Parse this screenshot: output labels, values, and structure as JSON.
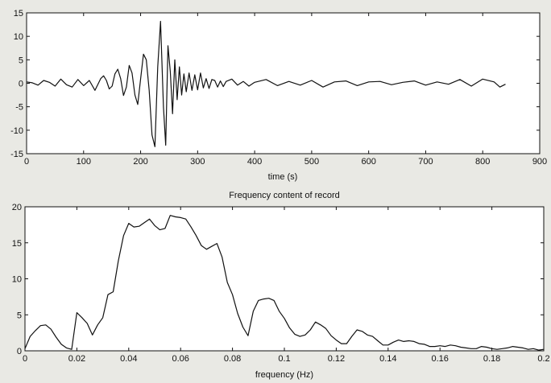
{
  "chart_data": [
    {
      "type": "line",
      "title": "",
      "xlabel": "time (s)",
      "ylabel": "",
      "xlim": [
        0,
        900
      ],
      "ylim": [
        -15,
        15
      ],
      "xticks": [
        0,
        100,
        200,
        300,
        400,
        500,
        600,
        700,
        800,
        900
      ],
      "xtick_labels": [
        "0",
        "100",
        "200",
        "300",
        "400",
        "500",
        "600",
        "700",
        "800",
        "900"
      ],
      "yticks": [
        -15,
        -10,
        -5,
        0,
        5,
        10,
        15
      ],
      "ytick_labels": [
        "-15",
        "-10",
        "-5",
        "0",
        "5",
        "10",
        "15"
      ],
      "grid": false,
      "series": [
        {
          "x": [
            0,
            10,
            20,
            30,
            40,
            50,
            60,
            70,
            80,
            90,
            100,
            110,
            120,
            130,
            135,
            140,
            145,
            150,
            155,
            160,
            165,
            170,
            175,
            180,
            185,
            190,
            195,
            200,
            205,
            210,
            215,
            220,
            225,
            230,
            235,
            240,
            244,
            248,
            252,
            256,
            260,
            264,
            268,
            272,
            276,
            280,
            285,
            290,
            295,
            300,
            305,
            310,
            315,
            320,
            325,
            330,
            335,
            340,
            345,
            350,
            360,
            370,
            380,
            390,
            400,
            420,
            440,
            460,
            480,
            500,
            520,
            540,
            560,
            580,
            600,
            620,
            640,
            660,
            680,
            700,
            720,
            740,
            760,
            780,
            800,
            820,
            830,
            840
          ],
          "y": [
            0.3,
            0.1,
            -0.4,
            0.6,
            0.2,
            -0.6,
            0.9,
            -0.3,
            -0.8,
            0.8,
            -0.5,
            0.6,
            -1.5,
            1.0,
            1.6,
            0.6,
            -1.2,
            -0.6,
            2.0,
            3.0,
            1.0,
            -2.6,
            -0.8,
            3.8,
            2.2,
            -2.5,
            -4.5,
            1.0,
            6.2,
            5.0,
            -1.5,
            -11.0,
            -13.5,
            3.5,
            13.2,
            -5.0,
            -13.2,
            8.0,
            2.5,
            -6.5,
            5.0,
            -3.5,
            3.5,
            -2.5,
            2.0,
            -1.8,
            2.2,
            -1.5,
            1.8,
            -1.4,
            2.2,
            -1.0,
            1.0,
            -1.1,
            0.8,
            0.6,
            -0.8,
            0.5,
            -0.7,
            0.4,
            0.9,
            -0.4,
            0.4,
            -0.6,
            0.2,
            0.8,
            -0.5,
            0.4,
            -0.4,
            0.6,
            -0.8,
            0.3,
            0.5,
            -0.5,
            0.3,
            0.4,
            -0.3,
            0.2,
            0.5,
            -0.4,
            0.3,
            -0.2,
            0.8,
            -0.6,
            0.9,
            0.3,
            -0.8,
            -0.2
          ]
        }
      ]
    },
    {
      "type": "line",
      "title": "Frequency content of record",
      "xlabel": "frequency (Hz)",
      "ylabel": "",
      "xlim": [
        0,
        0.2
      ],
      "ylim": [
        0,
        20
      ],
      "xticks": [
        0,
        0.02,
        0.04,
        0.06,
        0.08,
        0.1,
        0.12,
        0.14,
        0.16,
        0.18,
        0.2
      ],
      "xtick_labels": [
        "0",
        "0.02",
        "0.04",
        "0.06",
        "0.08",
        "0.1",
        "0.12",
        "0.14",
        "0.16",
        "0.18",
        "0.2"
      ],
      "yticks": [
        0,
        5,
        10,
        15,
        20
      ],
      "ytick_labels": [
        "0",
        "5",
        "10",
        "15",
        "20"
      ],
      "grid": false,
      "series": [
        {
          "x": [
            0,
            0.002,
            0.004,
            0.006,
            0.008,
            0.01,
            0.012,
            0.014,
            0.016,
            0.018,
            0.02,
            0.022,
            0.024,
            0.026,
            0.028,
            0.03,
            0.032,
            0.034,
            0.036,
            0.038,
            0.04,
            0.042,
            0.044,
            0.046,
            0.048,
            0.05,
            0.052,
            0.054,
            0.056,
            0.058,
            0.06,
            0.062,
            0.064,
            0.066,
            0.068,
            0.07,
            0.072,
            0.074,
            0.076,
            0.078,
            0.08,
            0.082,
            0.084,
            0.086,
            0.088,
            0.09,
            0.092,
            0.094,
            0.096,
            0.098,
            0.1,
            0.102,
            0.104,
            0.106,
            0.108,
            0.11,
            0.112,
            0.114,
            0.116,
            0.118,
            0.12,
            0.122,
            0.124,
            0.126,
            0.128,
            0.13,
            0.132,
            0.134,
            0.136,
            0.138,
            0.14,
            0.142,
            0.144,
            0.146,
            0.148,
            0.15,
            0.152,
            0.154,
            0.156,
            0.158,
            0.16,
            0.162,
            0.164,
            0.166,
            0.168,
            0.17,
            0.172,
            0.174,
            0.176,
            0.178,
            0.18,
            0.182,
            0.184,
            0.186,
            0.188,
            0.19,
            0.192,
            0.194,
            0.196,
            0.198,
            0.2
          ],
          "y": [
            0.3,
            2.0,
            2.8,
            3.5,
            3.6,
            3.0,
            1.9,
            0.9,
            0.4,
            0.2,
            5.3,
            4.6,
            3.8,
            2.2,
            3.6,
            4.6,
            7.8,
            8.2,
            12.5,
            16.0,
            17.7,
            17.2,
            17.3,
            17.8,
            18.3,
            17.4,
            16.8,
            17.0,
            18.8,
            18.6,
            18.5,
            18.3,
            17.2,
            16.0,
            14.6,
            14.1,
            14.5,
            14.9,
            13.0,
            9.5,
            7.8,
            5.2,
            3.3,
            2.1,
            5.5,
            7.0,
            7.2,
            7.3,
            7.0,
            5.5,
            4.5,
            3.2,
            2.3,
            2.0,
            2.2,
            2.9,
            4.0,
            3.6,
            3.1,
            2.1,
            1.5,
            1.0,
            1.0,
            2.0,
            2.9,
            2.7,
            2.2,
            2.0,
            1.4,
            0.8,
            0.8,
            1.2,
            1.5,
            1.3,
            1.4,
            1.3,
            1.0,
            0.9,
            0.6,
            0.6,
            0.7,
            0.6,
            0.8,
            0.7,
            0.5,
            0.4,
            0.3,
            0.3,
            0.6,
            0.5,
            0.3,
            0.2,
            0.3,
            0.4,
            0.6,
            0.5,
            0.4,
            0.2,
            0.3,
            0.1,
            0.2
          ]
        }
      ]
    }
  ]
}
